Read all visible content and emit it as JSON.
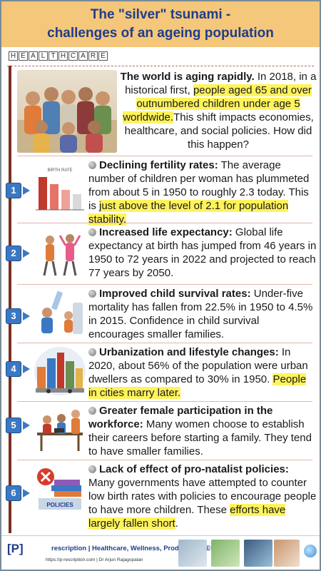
{
  "header": {
    "title_line1": "The \"silver\" tsunami -",
    "title_line2": "challenges of an ageing population"
  },
  "category_letters": [
    "H",
    "E",
    "A",
    "L",
    "T",
    "H",
    "C",
    "A",
    "R",
    "E"
  ],
  "intro": {
    "lead": "The world is aging rapidly.",
    "text1": " In 2018, in a historical first, ",
    "highlight": "people aged 65 and over outnumbered children under age 5 worldwide.",
    "text2": "This shift impacts economies, healthcare, and social policies. How did this happen?"
  },
  "items": [
    {
      "number": "1",
      "heading": "Declining fertility rates:",
      "text": " The average number of children per woman has plummeted from about 5 in 1950 to roughly 2.3 today. This is ",
      "highlight": "just above the level of 2.1 for population stability.",
      "tail": "",
      "image_label": "BIRTH RATE"
    },
    {
      "number": "2",
      "heading": "Increased life expectancy:",
      "text": " Global life expectancy at birth has jumped from 46 years in 1950 to 72 years in 2022 and projected to reach 77 years by 2050.",
      "highlight": "",
      "tail": ""
    },
    {
      "number": "3",
      "heading": "Improved child survival rates:",
      "text": " Under-five mortality has fallen from 22.5% in 1950 to 4.5% in 2015. Confidence in child survival encourages smaller families.",
      "highlight": "",
      "tail": ""
    },
    {
      "number": "4",
      "heading": "Urbanization and lifestyle changes:",
      "text": " In 2020, about 56% of the population were urban dwellers as compared to 30% in 1950. ",
      "highlight": "People in cities marry later.",
      "tail": ""
    },
    {
      "number": "5",
      "heading": "Greater female participation in the workforce:",
      "text": " Many women choose to establish their careers before starting a family. They tend to have smaller families.",
      "highlight": "",
      "tail": ""
    },
    {
      "number": "6",
      "heading": "Lack of effect of pro-natalist policies:",
      "text": " Many governments have attempted to counter low birth rates with policies to encourage people to have more children. These ",
      "highlight": "efforts have largely fallen short",
      "tail": ".",
      "image_label": "POLICIES"
    }
  ],
  "footer": {
    "logo_bracket_p": "[P]",
    "logo_word": "rescription",
    "tagline": "| Healthcare, Wellness, Productivity, Etc.",
    "url": "https://p-rescription.com | Dr Arjun Rajagopalan"
  },
  "colors": {
    "header_bg": "#f4c77a",
    "title": "#1f3c8c",
    "highlight": "#fff35c",
    "badge": "#3b78c4",
    "timeline": "#7b2f24"
  }
}
